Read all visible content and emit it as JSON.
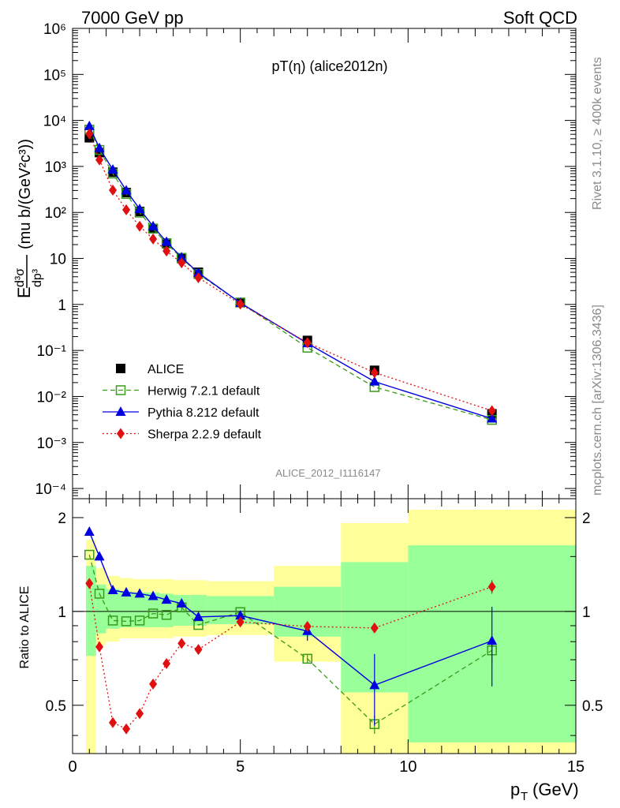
{
  "header": {
    "left": "7000 GeV pp",
    "right": "Soft QCD"
  },
  "side": {
    "top": "Rivet 3.1.10, ≥ 400k events",
    "bottom": "mcplots.cern.ch [arXiv:1306.3436]"
  },
  "colors": {
    "data": "#000000",
    "herwig": "#3a9a1a",
    "pythia": "#0000e0",
    "sherpa": "#e01010",
    "band_yellow": "#ffff99",
    "band_green": "#99ff99"
  },
  "chart_data": [
    {
      "type": "scatter",
      "title": "pT(η) (alice2012n)",
      "watermark": "ALICE_2012_I1116147",
      "ylabel_prefix": "E",
      "ylabel_fraction_top": "d³σ",
      "ylabel_fraction_bottom": "dp³",
      "ylabel_units": "(mu b/(GeV²c³))",
      "yscale": "log",
      "xlim": [
        0,
        15
      ],
      "ylim": [
        6e-05,
        1000000
      ],
      "y_tick_labels": [
        "10⁻⁴",
        "10⁻³",
        "10⁻²",
        "10⁻¹",
        "1",
        "10",
        "10²",
        "10³",
        "10⁴",
        "10⁵",
        "10⁶"
      ],
      "legend_position": "bottom-left",
      "x": [
        0.5,
        0.8,
        1.2,
        1.6,
        2.0,
        2.4,
        2.8,
        3.25,
        3.75,
        5.0,
        7.0,
        9.0,
        12.5
      ],
      "series": [
        {
          "name": "ALICE",
          "key": "data",
          "marker": "square",
          "values": [
            4200,
            2000,
            750,
            270,
            105,
            45,
            21.5,
            10,
            5,
            1.1,
            0.165,
            0.037,
            0.0042
          ]
        },
        {
          "name": "Herwig 7.2.1 default",
          "key": "herwig",
          "marker": "open-square",
          "dash": "dashed",
          "values": [
            6300,
            2280,
            700,
            252,
            99,
            44.5,
            21,
            10.3,
            4.6,
            1.1,
            0.115,
            0.016,
            0.0031
          ]
        },
        {
          "name": "Pythia 8.212 default",
          "key": "pythia",
          "marker": "triangle",
          "dash": "solid",
          "values": [
            7500,
            2500,
            850,
            300,
            118,
            50,
            23,
            10.5,
            4.85,
            1.08,
            0.143,
            0.021,
            0.0033
          ]
        },
        {
          "name": "Sherpa 2.2.9 default",
          "key": "sherpa",
          "marker": "diamond",
          "dash": "dotted",
          "values": [
            5100,
            1390,
            305,
            114,
            50,
            26.5,
            14.5,
            8,
            3.8,
            1.02,
            0.148,
            0.033,
            0.0049
          ]
        }
      ]
    },
    {
      "type": "scatter",
      "ylabel": "Ratio to ALICE",
      "xlabel": "p_T (GeV)",
      "xlabel_main": "p",
      "xlabel_sub": "T",
      "xlabel_units": "(GeV)",
      "xlim": [
        0,
        15
      ],
      "ylim": [
        0.35,
        2.3
      ],
      "yscale": "log",
      "x_tick_labels": [
        "0",
        "5",
        "10",
        "15"
      ],
      "y_tick_labels": [
        "0.5",
        "1",
        "2"
      ],
      "reference_line": 1,
      "bins": [
        {
          "x0": 0.4,
          "x1": 0.7,
          "y_lo": 0.3,
          "y_hi": 1.7,
          "g_lo": 0.72,
          "g_hi": 1.4
        },
        {
          "x0": 0.7,
          "x1": 1.0,
          "y_lo": 0.78,
          "y_hi": 1.38,
          "g_lo": 0.85,
          "g_hi": 1.22
        },
        {
          "x0": 1.0,
          "x1": 1.4,
          "y_lo": 0.8,
          "y_hi": 1.3,
          "g_lo": 0.88,
          "g_hi": 1.18
        },
        {
          "x0": 1.4,
          "x1": 1.8,
          "y_lo": 0.82,
          "y_hi": 1.28,
          "g_lo": 0.89,
          "g_hi": 1.16
        },
        {
          "x0": 1.8,
          "x1": 2.2,
          "y_lo": 0.82,
          "y_hi": 1.27,
          "g_lo": 0.89,
          "g_hi": 1.15
        },
        {
          "x0": 2.2,
          "x1": 2.6,
          "y_lo": 0.82,
          "y_hi": 1.27,
          "g_lo": 0.89,
          "g_hi": 1.15
        },
        {
          "x0": 2.6,
          "x1": 3.0,
          "y_lo": 0.82,
          "y_hi": 1.27,
          "g_lo": 0.89,
          "g_hi": 1.14
        },
        {
          "x0": 3.0,
          "x1": 3.5,
          "y_lo": 0.83,
          "y_hi": 1.26,
          "g_lo": 0.9,
          "g_hi": 1.13
        },
        {
          "x0": 3.5,
          "x1": 4.0,
          "y_lo": 0.83,
          "y_hi": 1.26,
          "g_lo": 0.9,
          "g_hi": 1.13
        },
        {
          "x0": 4.0,
          "x1": 6.0,
          "y_lo": 0.84,
          "y_hi": 1.25,
          "g_lo": 0.91,
          "g_hi": 1.12
        },
        {
          "x0": 6.0,
          "x1": 8.0,
          "y_lo": 0.69,
          "y_hi": 1.4,
          "g_lo": 0.83,
          "g_hi": 1.2
        },
        {
          "x0": 8.0,
          "x1": 10.0,
          "y_lo": 0.3,
          "y_hi": 1.92,
          "g_lo": 0.55,
          "g_hi": 1.44
        },
        {
          "x0": 10.0,
          "x1": 15.0,
          "y_lo": 0.3,
          "y_hi": 2.12,
          "g_lo": 0.38,
          "g_hi": 1.63
        }
      ],
      "series": [
        {
          "name": "Herwig 7.2.1 default",
          "key": "herwig",
          "marker": "open-square",
          "dash": "dashed",
          "values": [
            1.52,
            1.14,
            0.935,
            0.93,
            0.935,
            0.985,
            0.975,
            1.03,
            0.905,
            0.995,
            0.705,
            0.435,
            0.75
          ],
          "err": [
            0,
            0,
            0,
            0,
            0,
            0,
            0,
            0.025,
            0,
            0,
            0.025,
            0.03,
            0.07
          ]
        },
        {
          "name": "Pythia 8.212 default",
          "key": "pythia",
          "marker": "triangle",
          "dash": "solid",
          "values": [
            1.8,
            1.5,
            1.17,
            1.15,
            1.14,
            1.12,
            1.09,
            1.06,
            0.96,
            0.97,
            0.865,
            0.58,
            0.805
          ],
          "err": [
            0,
            0,
            0,
            0,
            0,
            0,
            0,
            0,
            0,
            0,
            0.06,
            0.15,
            0.23
          ]
        },
        {
          "name": "Sherpa 2.2.9 default",
          "key": "sherpa",
          "marker": "diamond",
          "dash": "dotted",
          "values": [
            1.23,
            0.77,
            0.44,
            0.42,
            0.47,
            0.585,
            0.68,
            0.79,
            0.755,
            0.925,
            0.895,
            0.885,
            1.2
          ],
          "err": [
            0,
            0,
            0,
            0,
            0,
            0,
            0,
            0,
            0,
            0,
            0,
            0.03,
            0.06
          ]
        }
      ]
    }
  ]
}
